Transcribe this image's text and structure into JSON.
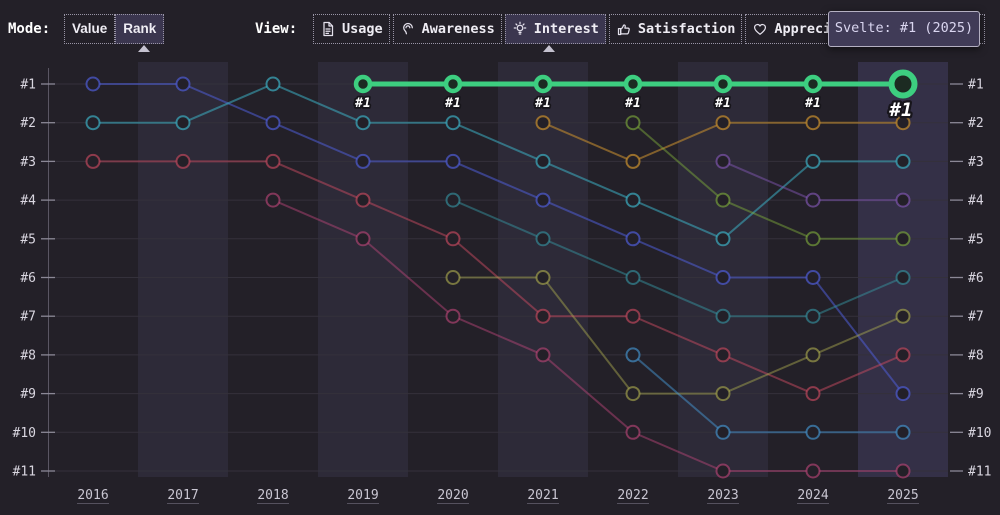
{
  "mode_bar": {
    "mode_label": "Mode:",
    "modes": [
      {
        "label": "Value",
        "active": false
      },
      {
        "label": "Rank",
        "active": true
      }
    ],
    "view_label": "View:",
    "views": [
      {
        "label": "Usage",
        "icon": "document-icon",
        "active": false
      },
      {
        "label": "Awareness",
        "icon": "ear-icon",
        "active": false
      },
      {
        "label": "Interest",
        "icon": "bulb-icon",
        "active": true
      },
      {
        "label": "Satisfaction",
        "icon": "thumbs-up-icon",
        "active": false
      },
      {
        "label": "Appreciation",
        "icon": "heart-icon",
        "active": false
      }
    ]
  },
  "tooltip": {
    "text": "Svelte: #1 (2025)"
  },
  "chart_data": {
    "type": "line",
    "subtype": "bump-rank-chart",
    "x": [
      2016,
      2017,
      2018,
      2019,
      2020,
      2021,
      2022,
      2023,
      2024,
      2025
    ],
    "rank_labels": [
      "#1",
      "#2",
      "#3",
      "#4",
      "#5",
      "#6",
      "#7",
      "#8",
      "#9",
      "#10",
      "#11"
    ],
    "ylim": [
      1,
      11
    ],
    "grid": "horizontal",
    "banded_years": [
      2017,
      2019,
      2021,
      2023,
      2025
    ],
    "hovered_year": 2025,
    "colors": {
      "background": "#232028",
      "band": "#2d2a38",
      "band_hover": "#343047",
      "grid": "#34313b",
      "axis": "#5a5663",
      "tick": "#8b8896"
    },
    "highlight_series": {
      "name": "Svelte",
      "color": "#3dce80",
      "point_label": "#1",
      "hovered_point_year": 2025,
      "ranks": [
        null,
        null,
        null,
        1,
        1,
        1,
        1,
        1,
        1,
        1
      ]
    },
    "series": [
      {
        "id": "indigo",
        "color": "#4f5cd6",
        "opacity": 0.55,
        "ranks": [
          1,
          1,
          2,
          3,
          3,
          4,
          5,
          6,
          6,
          9
        ]
      },
      {
        "id": "teal",
        "color": "#3caec2",
        "opacity": 0.55,
        "ranks": [
          2,
          2,
          1,
          2,
          2,
          3,
          4,
          5,
          3,
          3
        ]
      },
      {
        "id": "red",
        "color": "#c84a60",
        "opacity": 0.5,
        "ranks": [
          3,
          3,
          3,
          4,
          5,
          7,
          7,
          8,
          9,
          8
        ]
      },
      {
        "id": "pink",
        "color": "#c2487c",
        "opacity": 0.45,
        "ranks": [
          null,
          null,
          4,
          5,
          7,
          8,
          10,
          11,
          11,
          11
        ]
      },
      {
        "id": "dark-teal",
        "color": "#35919e",
        "opacity": 0.5,
        "ranks": [
          null,
          null,
          null,
          null,
          4,
          5,
          6,
          7,
          7,
          6
        ]
      },
      {
        "id": "olive",
        "color": "#b0b050",
        "opacity": 0.45,
        "ranks": [
          null,
          null,
          null,
          null,
          6,
          6,
          9,
          9,
          8,
          7
        ]
      },
      {
        "id": "brown",
        "color": "#c08a2e",
        "opacity": 0.6,
        "ranks": [
          null,
          null,
          null,
          null,
          null,
          2,
          3,
          2,
          2,
          2
        ]
      },
      {
        "id": "olive-green",
        "color": "#82b33c",
        "opacity": 0.45,
        "ranks": [
          null,
          null,
          null,
          null,
          null,
          null,
          2,
          4,
          5,
          5
        ]
      },
      {
        "id": "light-blue",
        "color": "#4596d2",
        "opacity": 0.5,
        "ranks": [
          null,
          null,
          null,
          null,
          null,
          null,
          8,
          10,
          10,
          10
        ]
      },
      {
        "id": "purple",
        "color": "#8a5cbf",
        "opacity": 0.45,
        "ranks": [
          null,
          null,
          null,
          null,
          null,
          null,
          null,
          3,
          4,
          4
        ]
      }
    ]
  }
}
